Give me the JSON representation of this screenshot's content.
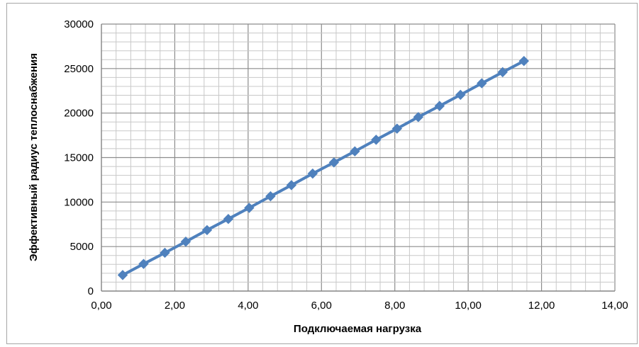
{
  "chart_data": {
    "type": "line",
    "title": "",
    "xlabel": "Подключаемая нагрузка",
    "ylabel": "Эффективный радиус теплоснабжения",
    "xlim": [
      0,
      14
    ],
    "ylim": [
      0,
      30000
    ],
    "x_ticks": [
      "0,00",
      "2,00",
      "4,00",
      "6,00",
      "8,00",
      "10,00",
      "12,00",
      "14,00"
    ],
    "y_ticks": [
      "0",
      "5000",
      "10000",
      "15000",
      "20000",
      "25000",
      "30000"
    ],
    "grid": true,
    "legend": "none",
    "series": [
      {
        "color": "#4f81bd",
        "marker": "diamond",
        "x": [
          0.58,
          1.15,
          1.73,
          2.3,
          2.88,
          3.46,
          4.03,
          4.61,
          5.18,
          5.76,
          6.34,
          6.91,
          7.49,
          8.06,
          8.64,
          9.22,
          9.79,
          10.37,
          10.94,
          11.52
        ],
        "y": [
          1800,
          3050,
          4300,
          5550,
          6850,
          8100,
          9350,
          10650,
          11900,
          13200,
          14450,
          15700,
          17000,
          18250,
          19550,
          20800,
          22050,
          23350,
          24600,
          25850
        ]
      }
    ]
  }
}
